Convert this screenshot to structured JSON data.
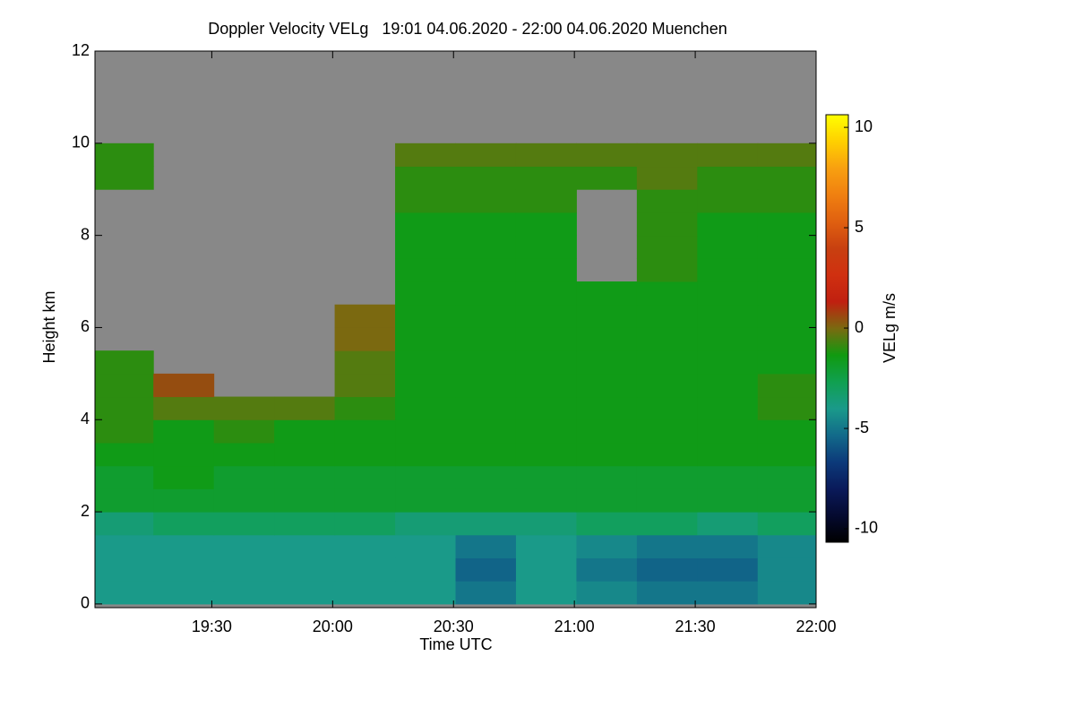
{
  "chart_data": {
    "type": "heatmap",
    "title": "Doppler Velocity VELg   19:01 04.06.2020 - 22:00 04.06.2020 Muenchen",
    "x_label": "Time UTC",
    "y_label": "Height km",
    "colorbar_label": "VELg m/s",
    "x": [
      8,
      23,
      38,
      53,
      68,
      83,
      98,
      113,
      128,
      143,
      158,
      173
    ],
    "y": [
      0.25,
      0.75,
      1.25,
      1.75,
      2.25,
      2.75,
      3.25,
      3.75,
      4.25,
      4.75,
      5.25,
      5.75,
      6.25,
      6.75,
      7.25,
      7.75,
      8.25,
      8.75,
      9.25,
      9.75,
      10.25,
      10.75,
      11.25,
      11.75
    ],
    "values": [
      [
        -4,
        -4,
        -4,
        -4,
        -4,
        -4,
        -5,
        -4,
        -4.5,
        -5,
        -5,
        -4.5
      ],
      [
        -4,
        -4,
        -4,
        -4,
        -4,
        -4,
        -5.5,
        -4,
        -5,
        -5.5,
        -5.5,
        -4.5
      ],
      [
        -4,
        -4,
        -4,
        -4,
        -4,
        -4,
        -5,
        -4,
        -4.5,
        -5,
        -5,
        -4.5
      ],
      [
        -3.5,
        -3,
        -3,
        -3,
        -3,
        -3.5,
        -3.5,
        -3.5,
        -3,
        -3,
        -3.5,
        -3
      ],
      [
        -2,
        -2,
        -2,
        -2,
        -2,
        -2,
        -2,
        -2,
        -2,
        -2,
        -2,
        -2
      ],
      [
        -2,
        -1.5,
        -2,
        -2,
        -2,
        -2,
        -2,
        -2,
        -2,
        -2,
        -2,
        -2
      ],
      [
        -1.5,
        -1.5,
        -1.5,
        -1.5,
        -1.5,
        -1.5,
        -1.5,
        -1.5,
        -1.5,
        -1.5,
        -1.5,
        -1.5
      ],
      [
        -1,
        -1.5,
        -1,
        -1.5,
        -1.5,
        -1.5,
        -1.5,
        -1.5,
        -1.5,
        -1.5,
        -1.5,
        -1.5
      ],
      [
        -1,
        -0.5,
        -0.5,
        -0.5,
        -1,
        -1.5,
        -1.5,
        -1.5,
        -1.5,
        -1.5,
        -1.5,
        -1
      ],
      [
        -1,
        0.5,
        null,
        null,
        -0.5,
        -1.5,
        -1.5,
        -1.5,
        -1.5,
        -1.5,
        -1.5,
        -1
      ],
      [
        -1,
        null,
        null,
        null,
        -0.5,
        -1.5,
        -1.5,
        -1.5,
        -1.5,
        -1.5,
        -1.5,
        -1.5
      ],
      [
        null,
        null,
        null,
        null,
        0,
        -1.5,
        -1.5,
        -1.5,
        -1.5,
        -1.5,
        -1.5,
        -1.5
      ],
      [
        null,
        null,
        null,
        null,
        0,
        -1.5,
        -1.5,
        -1.5,
        -1.5,
        -1.5,
        -1.5,
        -1.5
      ],
      [
        null,
        null,
        null,
        null,
        null,
        -1.5,
        -1.5,
        -1.5,
        -1.5,
        -1.5,
        -1.5,
        -1.5
      ],
      [
        null,
        null,
        null,
        null,
        null,
        -1.5,
        -1.5,
        -1.5,
        null,
        -1,
        -1.5,
        -1.5
      ],
      [
        null,
        null,
        null,
        null,
        null,
        -1.5,
        -1.5,
        -1.5,
        null,
        -1,
        -1.5,
        -1.5
      ],
      [
        null,
        null,
        null,
        null,
        null,
        -1.5,
        -1.5,
        -1.5,
        null,
        -1,
        -1.5,
        -1.5
      ],
      [
        null,
        null,
        null,
        null,
        null,
        -1,
        -1,
        -1,
        null,
        -1,
        -1,
        -1
      ],
      [
        -1,
        null,
        null,
        null,
        null,
        -1,
        -1,
        -1,
        -1,
        -0.5,
        -1,
        -1
      ],
      [
        -1,
        null,
        null,
        null,
        null,
        -0.5,
        -0.5,
        -0.5,
        -0.5,
        -0.5,
        -0.5,
        -0.5
      ],
      [
        null,
        null,
        null,
        null,
        null,
        null,
        null,
        null,
        null,
        null,
        null,
        null
      ],
      [
        null,
        null,
        null,
        null,
        null,
        null,
        null,
        null,
        null,
        null,
        null,
        null
      ],
      [
        null,
        null,
        null,
        null,
        null,
        null,
        null,
        null,
        null,
        null,
        null,
        null
      ],
      [
        null,
        null,
        null,
        null,
        null,
        null,
        null,
        null,
        null,
        null,
        null,
        null
      ]
    ],
    "xlim": [
      1,
      180
    ],
    "xticks": [
      {
        "value": 30,
        "label": "19:30"
      },
      {
        "value": 60,
        "label": "20:00"
      },
      {
        "value": 90,
        "label": "20:30"
      },
      {
        "value": 120,
        "label": "21:00"
      },
      {
        "value": 150,
        "label": "21:30"
      },
      {
        "value": 180,
        "label": "22:00"
      }
    ],
    "ylim": [
      -0.08,
      12
    ],
    "yticks": [
      0,
      2,
      4,
      6,
      8,
      10,
      12
    ],
    "clim": [
      -10.67,
      10.63
    ],
    "cticks": [
      -10,
      -5,
      0,
      5,
      10
    ],
    "colormap": [
      "#000000",
      "#050a30",
      "#0a1a5a",
      "#0c3a7a",
      "#126a8a",
      "#1a9a8a",
      "#10a050",
      "#109a10",
      "#7a6a10",
      "#c02010",
      "#d03010",
      "#c84010",
      "#e06010",
      "#f08010",
      "#f8a010",
      "#ffd000",
      "#ffff00"
    ],
    "nodata_color": "#888888"
  }
}
